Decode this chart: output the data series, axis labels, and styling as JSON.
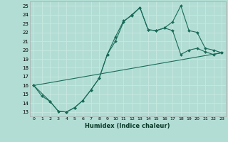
{
  "xlabel": "Humidex (Indice chaleur)",
  "bg_color": "#b2ddd4",
  "grid_color": "#c8e8e0",
  "line_color": "#1a6b5a",
  "xlim": [
    -0.5,
    23.5
  ],
  "ylim": [
    12.5,
    25.5
  ],
  "xticks": [
    0,
    1,
    2,
    3,
    4,
    5,
    6,
    7,
    8,
    9,
    10,
    11,
    12,
    13,
    14,
    15,
    16,
    17,
    18,
    19,
    20,
    21,
    22,
    23
  ],
  "yticks": [
    13,
    14,
    15,
    16,
    17,
    18,
    19,
    20,
    21,
    22,
    23,
    24,
    25
  ],
  "series1_x": [
    0,
    1,
    2,
    3,
    4,
    5,
    6,
    7,
    8,
    9,
    10,
    11,
    12,
    13,
    14,
    15,
    16,
    17,
    18,
    19,
    20,
    21,
    22,
    23
  ],
  "series1_y": [
    16.0,
    14.8,
    14.2,
    13.1,
    13.0,
    13.5,
    14.3,
    15.5,
    16.8,
    19.5,
    21.0,
    23.2,
    24.0,
    24.8,
    22.3,
    22.2,
    22.5,
    22.2,
    19.5,
    20.0,
    20.2,
    19.8,
    19.5,
    19.7
  ],
  "series2_x": [
    0,
    2,
    3,
    4,
    5,
    6,
    7,
    8,
    9,
    10,
    11,
    12,
    13,
    14,
    15,
    16,
    17,
    18,
    19,
    20,
    21,
    22,
    23
  ],
  "series2_y": [
    16.0,
    14.2,
    13.1,
    13.0,
    13.5,
    14.3,
    15.5,
    16.8,
    19.5,
    21.5,
    23.3,
    23.9,
    24.8,
    22.3,
    22.2,
    22.5,
    23.2,
    25.0,
    22.2,
    22.0,
    20.2,
    20.0,
    19.7
  ],
  "series3_x": [
    0,
    23
  ],
  "series3_y": [
    16.0,
    19.7
  ]
}
